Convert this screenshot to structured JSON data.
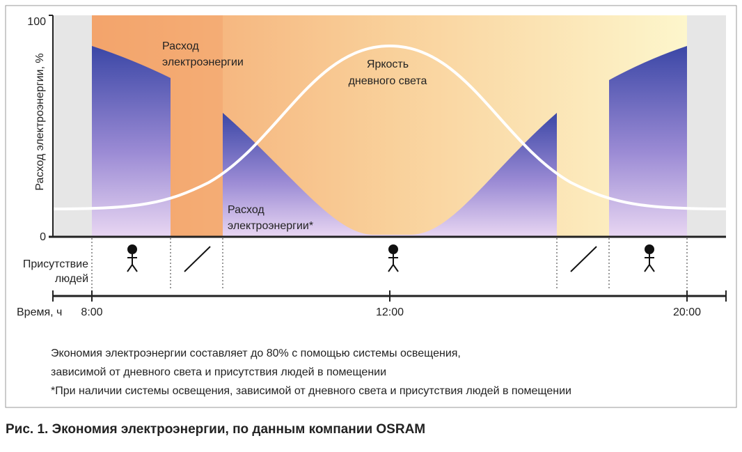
{
  "diagram": {
    "y_axis_label": "Расход электроэнергии, %",
    "y_top": "100",
    "y_bottom": "0",
    "label_energy_top": [
      "Расход",
      "электроэнергии"
    ],
    "label_daylight": [
      "Яркость",
      "дневного света"
    ],
    "label_energy_bottom": [
      "Расход",
      "электроэнергии*"
    ],
    "presence_label": [
      "Присутствие",
      "людей"
    ],
    "time_label": "Время, ч",
    "times": [
      "8:00",
      "12:00",
      "20:00"
    ],
    "notes": [
      "Экономия электроэнергии составляет до 80% с помощью системы освещения,",
      "зависимой от дневного света и присутствия людей в помещении",
      "*При наличии системы освещения, зависимой от дневного света и присутствия людей в помещении"
    ],
    "caption": "Рис. 1. Экономия электроэнергии, по данным компании OSRAM"
  }
}
